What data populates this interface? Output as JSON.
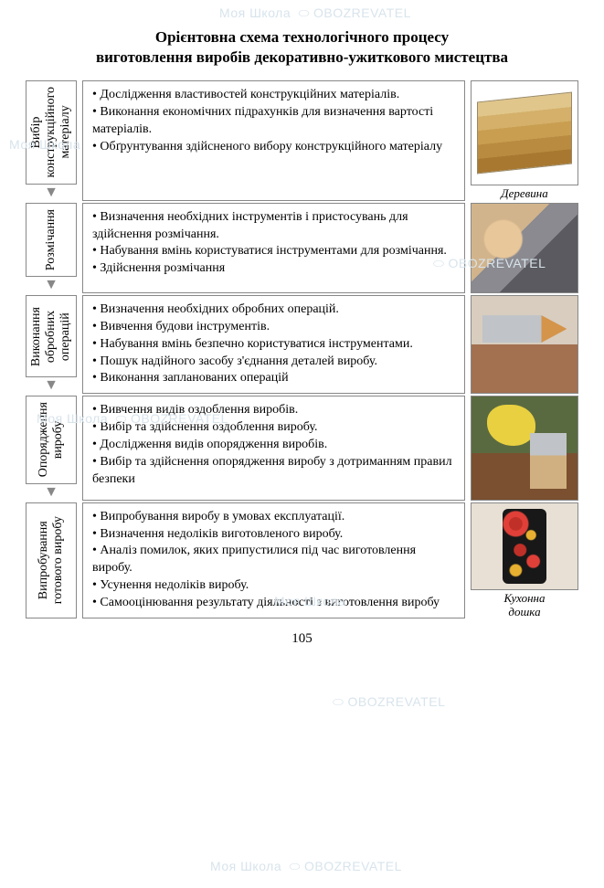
{
  "title_line1": "Орієнтовна схема технологічного процесу",
  "title_line2": "виготовлення виробів декоративно-ужиткового мистецтва",
  "page_number": "105",
  "watermark_text_a": "Моя Школа",
  "watermark_text_b": "OBOZREVATEL",
  "stages": [
    {
      "label": "Вибір\nконструкційного\nматеріалу",
      "bullets": [
        "• Дослідження властивостей конструкційних матеріалів.",
        "• Виконання економічних підрахунків для визначення вартості матеріалів.",
        "• Обґрунтування здійсненого вибору конструкційного матеріалу"
      ],
      "caption": "Деревина"
    },
    {
      "label": "Розмічання",
      "bullets": [
        "• Визначення необхідних інструментів і пристосувань для здійснення розмічання.",
        "• Набування вмінь користуватися інструментами для розмічання.",
        "• Здійснення розмічання"
      ],
      "caption": ""
    },
    {
      "label": "Виконання\nобробних\nоперацій",
      "bullets": [
        "• Визначення необхідних обробних операцій.",
        "• Вивчення будови інструментів.",
        "• Набування вмінь безпечно користуватися інструментами.",
        "• Пошук надійного засобу з'єднання деталей виробу.",
        "• Виконання запланованих операцій"
      ],
      "caption": ""
    },
    {
      "label": "Опорядження\nвиробу",
      "bullets": [
        "• Вивчення видів оздоблення виробів.",
        "• Вибір та здійснення оздоблення виробу.",
        "• Дослідження видів опорядження виробів.",
        "• Вибір та здійснення опорядження виробу з дотриманням правил безпеки"
      ],
      "caption": ""
    },
    {
      "label": "Випробування\nготового виробу",
      "bullets": [
        "• Випробування виробу в умовах експлуатації.",
        "• Визначення недоліків виготовленого виробу.",
        "• Аналіз помилок, яких припустилися під час виготовлення виробу.",
        "• Усунення недоліків виробу.",
        "• Самооцінювання результату діяльності з виготовлення виробу"
      ],
      "caption": "Кухонна\nдошка"
    }
  ]
}
